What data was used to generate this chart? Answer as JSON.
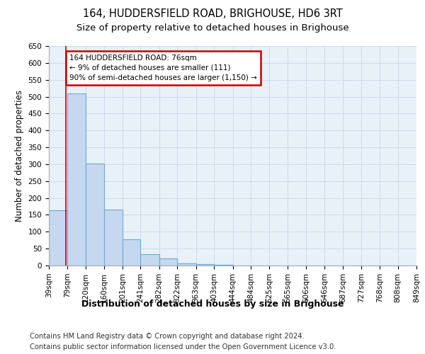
{
  "title1": "164, HUDDERSFIELD ROAD, BRIGHOUSE, HD6 3RT",
  "title2": "Size of property relative to detached houses in Brighouse",
  "xlabel": "Distribution of detached houses by size in Brighouse",
  "ylabel": "Number of detached properties",
  "footnote1": "Contains HM Land Registry data © Crown copyright and database right 2024.",
  "footnote2": "Contains public sector information licensed under the Open Government Licence v3.0.",
  "bin_edges": [
    39,
    79,
    120,
    160,
    201,
    241,
    282,
    322,
    363,
    403,
    444,
    484,
    525,
    565,
    606,
    646,
    687,
    727,
    768,
    808,
    849
  ],
  "bar_heights": [
    163,
    510,
    302,
    165,
    78,
    33,
    20,
    7,
    4,
    2,
    1,
    1,
    1,
    1,
    0,
    0,
    0,
    0,
    0,
    0
  ],
  "bar_color": "#c5d8f0",
  "bar_edgecolor": "#6aaad4",
  "property_line_x": 76,
  "property_line_color": "#cc0000",
  "annotation_text": "164 HUDDERSFIELD ROAD: 76sqm\n← 9% of detached houses are smaller (111)\n90% of semi-detached houses are larger (1,150) →",
  "annotation_box_color": "#cc0000",
  "ylim": [
    0,
    650
  ],
  "yticks": [
    0,
    50,
    100,
    150,
    200,
    250,
    300,
    350,
    400,
    450,
    500,
    550,
    600,
    650
  ],
  "grid_color": "#c8d8ea",
  "background_color": "#e8f0f8",
  "title1_fontsize": 10.5,
  "title2_fontsize": 9.5,
  "xlabel_fontsize": 9,
  "ylabel_fontsize": 8.5,
  "tick_fontsize": 7.5,
  "footnote_fontsize": 7.2
}
